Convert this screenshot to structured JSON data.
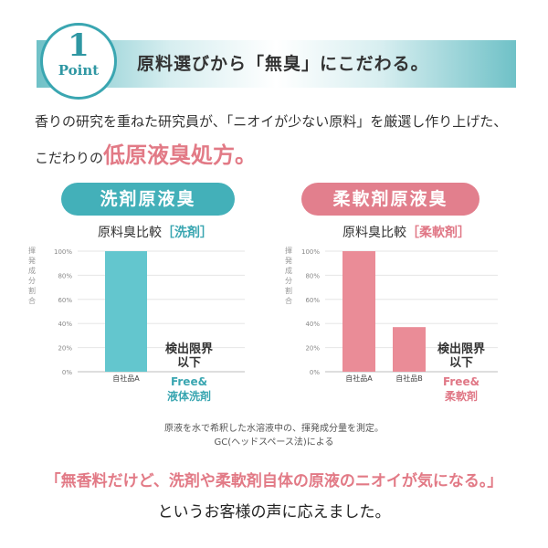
{
  "header": {
    "point_number": "1",
    "point_word": "Point",
    "headline": "原料選びから「無臭」にこだわる。"
  },
  "intro": {
    "line1": "香りの研究を重ねた研究員が、「ニオイが少ない原料」を厳選し作り上げた、",
    "line2_prefix": "こだわりの",
    "line2_emphasis": "低原液臭処方。"
  },
  "colors": {
    "teal": "#43b0b9",
    "pink": "#e27f8d"
  },
  "chart_data": [
    {
      "type": "bar",
      "pill_title": "洗剤原液臭",
      "title": "原料臭比較",
      "title_bracket": "［洗剤］",
      "ylabel": "揮発成分割合",
      "ylim": [
        0,
        100
      ],
      "yticks": [
        "100%",
        "80%",
        "60%",
        "40%",
        "20%",
        "0%"
      ],
      "categories": [
        "自社品A",
        "Free&\n液体洗剤"
      ],
      "values": [
        100,
        0
      ],
      "annotations": [
        "検出限界\n以下"
      ],
      "colors": [
        "#63c6ce",
        "#3aa6b1"
      ]
    },
    {
      "type": "bar",
      "pill_title": "柔軟剤原液臭",
      "title": "原料臭比較",
      "title_bracket": "［柔軟剤］",
      "ylabel": "揮発成分割合",
      "ylim": [
        0,
        100
      ],
      "yticks": [
        "100%",
        "80%",
        "60%",
        "40%",
        "20%",
        "0%"
      ],
      "categories": [
        "自社品A",
        "自社品B",
        "Free&\n柔軟剤"
      ],
      "values": [
        100,
        37,
        0
      ],
      "annotations": [
        "検出限界\n以下"
      ],
      "colors": [
        "#ea8c97",
        "#ea8c97",
        "#e07786"
      ]
    }
  ],
  "note": {
    "line1": "原液を水で希釈した水溶液中の、揮発成分量を測定。",
    "line2": "GC(ヘッドスペース法)による"
  },
  "quote": "「無香料だけど、洗剤や柔軟剤自体の原液のニオイが気になる。」",
  "closing": "というお客様の声に応えました。"
}
